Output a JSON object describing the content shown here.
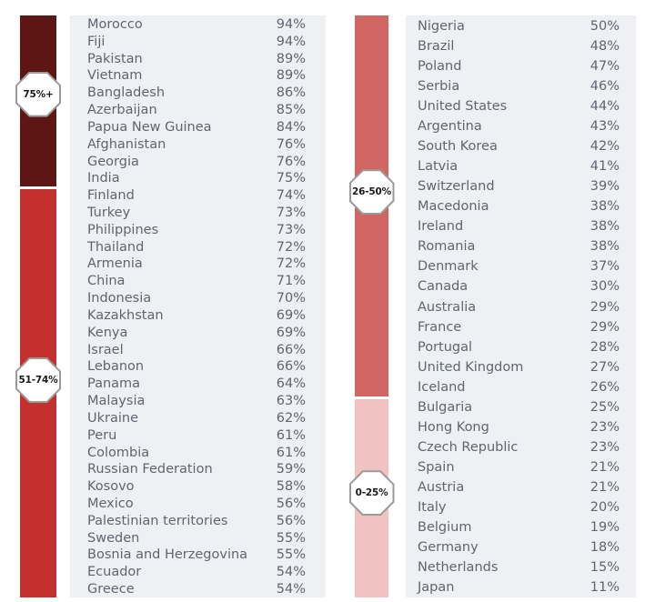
{
  "colors": {
    "band_75_plus": "#5e1614",
    "band_51_74": "#c4302e",
    "band_26_50": "#d26663",
    "band_0_25": "#f0c2c2",
    "panel": "#eef0f3",
    "text": "#5f6670"
  },
  "left_column": {
    "bands": [
      {
        "label": "75%+",
        "count": 10,
        "color": "#5e1614"
      },
      {
        "label": "51-74%",
        "count": 24,
        "color": "#c4302e"
      }
    ],
    "rows": [
      {
        "country": "Morocco",
        "pct": "94%"
      },
      {
        "country": "Fiji",
        "pct": "94%"
      },
      {
        "country": "Pakistan",
        "pct": "89%"
      },
      {
        "country": "Vietnam",
        "pct": "89%"
      },
      {
        "country": "Bangladesh",
        "pct": "86%"
      },
      {
        "country": "Azerbaijan",
        "pct": "85%"
      },
      {
        "country": "Papua New Guinea",
        "pct": "84%"
      },
      {
        "country": "Afghanistan",
        "pct": "76%"
      },
      {
        "country": "Georgia",
        "pct": "76%"
      },
      {
        "country": "India",
        "pct": "75%"
      },
      {
        "country": "Finland",
        "pct": "74%"
      },
      {
        "country": "Turkey",
        "pct": "73%"
      },
      {
        "country": "Philippines",
        "pct": "73%"
      },
      {
        "country": "Thailand",
        "pct": "72%"
      },
      {
        "country": "Armenia",
        "pct": "72%"
      },
      {
        "country": "China",
        "pct": "71%"
      },
      {
        "country": "Indonesia",
        "pct": "70%"
      },
      {
        "country": "Kazakhstan",
        "pct": "69%"
      },
      {
        "country": "Kenya",
        "pct": "69%"
      },
      {
        "country": "Israel",
        "pct": "66%"
      },
      {
        "country": "Lebanon",
        "pct": "66%"
      },
      {
        "country": "Panama",
        "pct": "64%"
      },
      {
        "country": "Malaysia",
        "pct": "63%"
      },
      {
        "country": "Ukraine",
        "pct": "62%"
      },
      {
        "country": "Peru",
        "pct": "61%"
      },
      {
        "country": "Colombia",
        "pct": "61%"
      },
      {
        "country": "Russian Federation",
        "pct": "59%"
      },
      {
        "country": "Kosovo",
        "pct": "58%"
      },
      {
        "country": "Mexico",
        "pct": "56%"
      },
      {
        "country": "Palestinian territories",
        "pct": "56%"
      },
      {
        "country": "Sweden",
        "pct": "55%"
      },
      {
        "country": "Bosnia and Herzegovina",
        "pct": "55%"
      },
      {
        "country": "Ecuador",
        "pct": "54%"
      },
      {
        "country": "Greece",
        "pct": "54%"
      }
    ]
  },
  "right_column": {
    "bands": [
      {
        "label": "26-50%",
        "count": 19,
        "color": "#d26663"
      },
      {
        "label": "0-25%",
        "count": 10,
        "color": "#f0c2c2"
      }
    ],
    "rows": [
      {
        "country": "Nigeria",
        "pct": "50%"
      },
      {
        "country": "Brazil",
        "pct": "48%"
      },
      {
        "country": "Poland",
        "pct": "47%"
      },
      {
        "country": "Serbia",
        "pct": "46%"
      },
      {
        "country": "United States",
        "pct": "44%"
      },
      {
        "country": "Argentina",
        "pct": "43%"
      },
      {
        "country": "South Korea",
        "pct": "42%"
      },
      {
        "country": "Latvia",
        "pct": "41%"
      },
      {
        "country": "Switzerland",
        "pct": "39%"
      },
      {
        "country": "Macedonia",
        "pct": "38%"
      },
      {
        "country": "Ireland",
        "pct": "38%"
      },
      {
        "country": "Romania",
        "pct": "38%"
      },
      {
        "country": "Denmark",
        "pct": "37%"
      },
      {
        "country": "Canada",
        "pct": "30%"
      },
      {
        "country": "Australia",
        "pct": "29%"
      },
      {
        "country": "France",
        "pct": "29%"
      },
      {
        "country": "Portugal",
        "pct": "28%"
      },
      {
        "country": "United Kingdom",
        "pct": "27%"
      },
      {
        "country": "Iceland",
        "pct": "26%"
      },
      {
        "country": "Bulgaria",
        "pct": "25%"
      },
      {
        "country": "Hong Kong",
        "pct": "23%"
      },
      {
        "country": "Czech Republic",
        "pct": "23%"
      },
      {
        "country": "Spain",
        "pct": "21%"
      },
      {
        "country": "Austria",
        "pct": "21%"
      },
      {
        "country": "Italy",
        "pct": "20%"
      },
      {
        "country": "Belgium",
        "pct": "19%"
      },
      {
        "country": "Germany",
        "pct": "18%"
      },
      {
        "country": "Netherlands",
        "pct": "15%"
      },
      {
        "country": "Japan",
        "pct": "11%"
      }
    ]
  },
  "chart_data": {
    "type": "table",
    "categories": [
      "Morocco",
      "Fiji",
      "Pakistan",
      "Vietnam",
      "Bangladesh",
      "Azerbaijan",
      "Papua New Guinea",
      "Afghanistan",
      "Georgia",
      "India",
      "Finland",
      "Turkey",
      "Philippines",
      "Thailand",
      "Armenia",
      "China",
      "Indonesia",
      "Kazakhstan",
      "Kenya",
      "Israel",
      "Lebanon",
      "Panama",
      "Malaysia",
      "Ukraine",
      "Peru",
      "Colombia",
      "Russian Federation",
      "Kosovo",
      "Mexico",
      "Palestinian territories",
      "Sweden",
      "Bosnia and Herzegovina",
      "Ecuador",
      "Greece",
      "Nigeria",
      "Brazil",
      "Poland",
      "Serbia",
      "United States",
      "Argentina",
      "South Korea",
      "Latvia",
      "Switzerland",
      "Macedonia",
      "Ireland",
      "Romania",
      "Denmark",
      "Canada",
      "Australia",
      "France",
      "Portugal",
      "United Kingdom",
      "Iceland",
      "Bulgaria",
      "Hong Kong",
      "Czech Republic",
      "Spain",
      "Austria",
      "Italy",
      "Belgium",
      "Germany",
      "Netherlands",
      "Japan"
    ],
    "values": [
      94,
      94,
      89,
      89,
      86,
      85,
      84,
      76,
      76,
      75,
      74,
      73,
      73,
      72,
      72,
      71,
      70,
      69,
      69,
      66,
      66,
      64,
      63,
      62,
      61,
      61,
      59,
      58,
      56,
      56,
      55,
      55,
      54,
      54,
      50,
      48,
      47,
      46,
      44,
      43,
      42,
      41,
      39,
      38,
      38,
      38,
      37,
      30,
      29,
      29,
      28,
      27,
      26,
      25,
      23,
      23,
      21,
      21,
      20,
      19,
      18,
      15,
      11
    ],
    "bands": [
      "75%+",
      "51-74%",
      "26-50%",
      "0-25%"
    ]
  }
}
